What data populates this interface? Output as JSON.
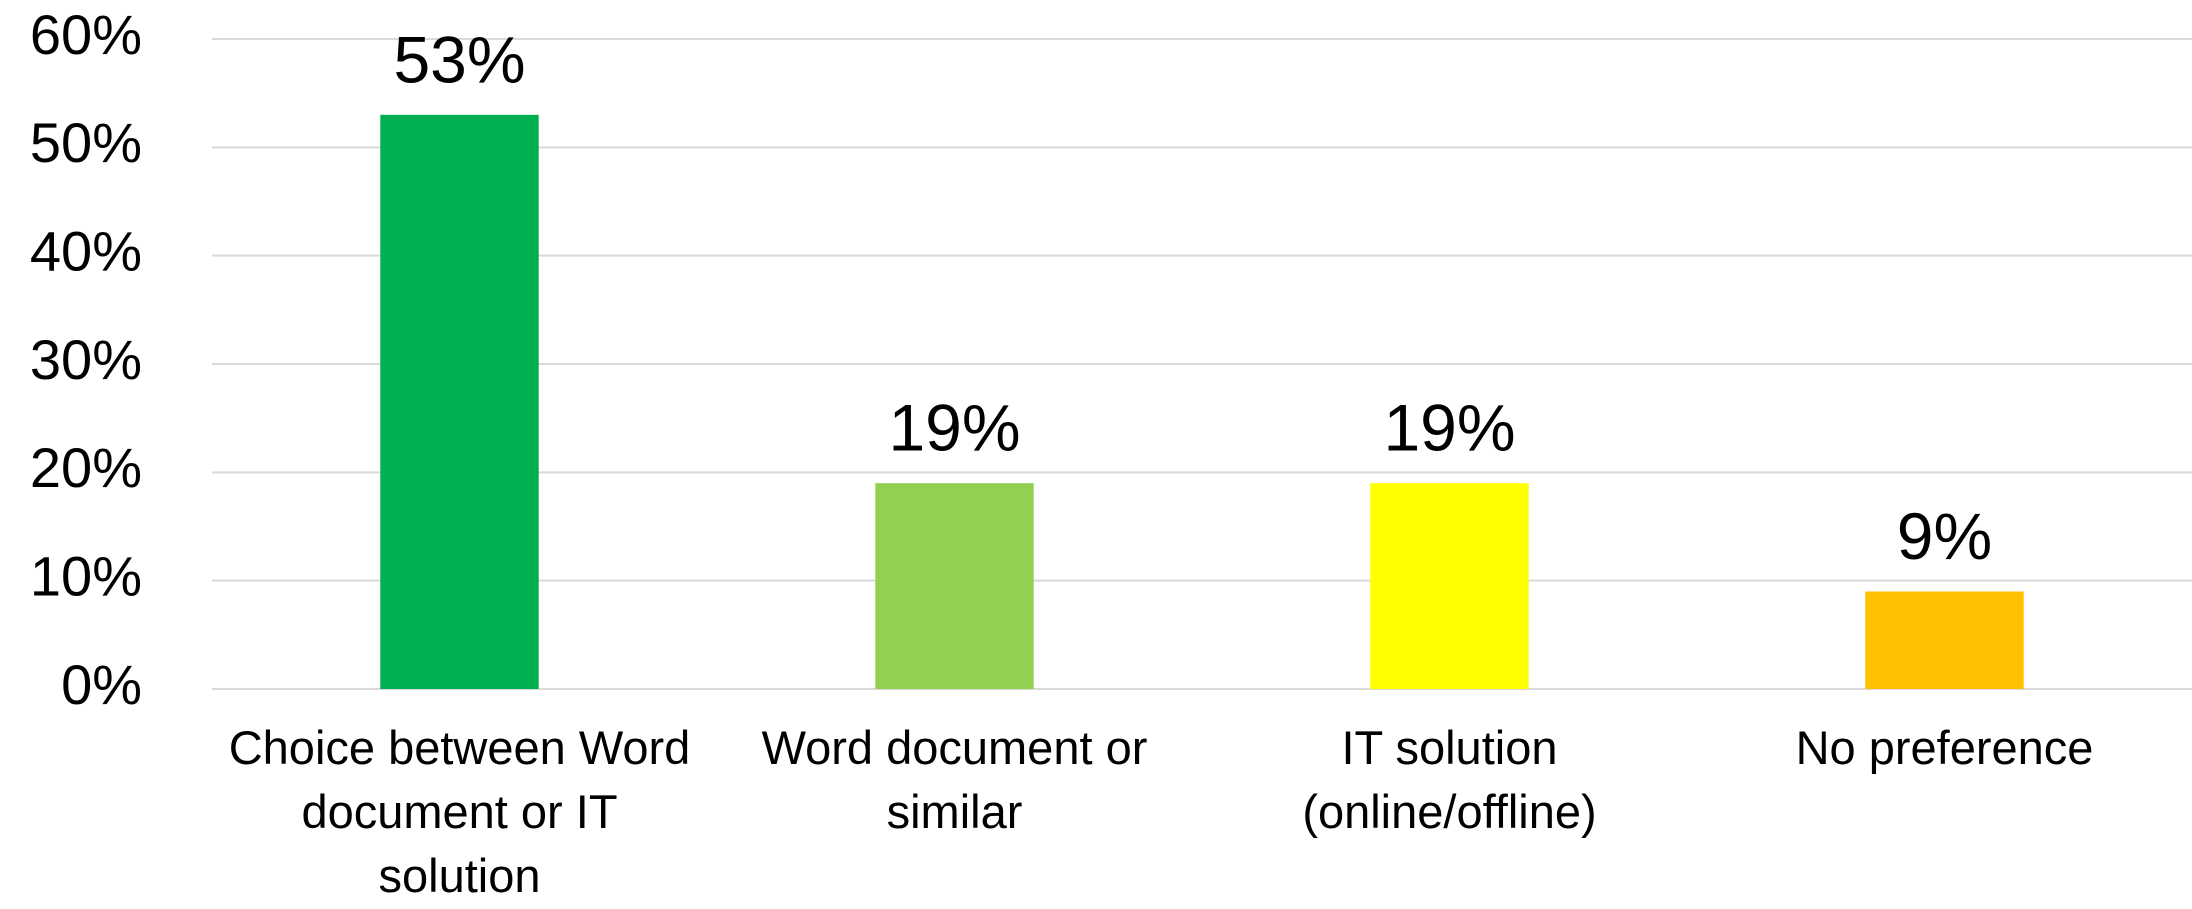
{
  "chart_data": {
    "type": "bar",
    "categories": [
      "Choice between Word document or IT solution",
      "Word document or similar",
      "IT solution (online/offline)",
      "No preference"
    ],
    "values": [
      53,
      19,
      19,
      9
    ],
    "value_labels": [
      "53%",
      "19%",
      "19%",
      "9%"
    ],
    "colors": [
      "#00b050",
      "#92d050",
      "#ffff00",
      "#ffc000"
    ],
    "ylim": [
      0,
      60
    ],
    "yticks": [
      {
        "value": 0,
        "label": "0%"
      },
      {
        "value": 10,
        "label": "10%"
      },
      {
        "value": 20,
        "label": "20%"
      },
      {
        "value": 30,
        "label": "30%"
      },
      {
        "value": 40,
        "label": "40%"
      },
      {
        "value": 50,
        "label": "50%"
      },
      {
        "value": 60,
        "label": "60%"
      }
    ],
    "grid": true
  }
}
